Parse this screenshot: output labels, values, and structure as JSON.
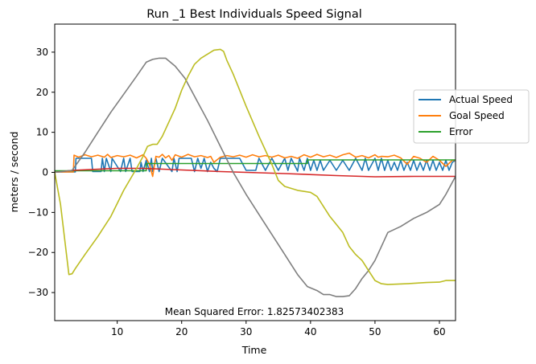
{
  "chart_data": {
    "type": "line",
    "title": "Run _1 Best Individuals Speed Signal",
    "xlabel": "Time",
    "ylabel": "meters / second",
    "xlim": [
      0.3,
      62.5
    ],
    "ylim": [
      -37,
      37
    ],
    "xticks": [
      10,
      20,
      30,
      40,
      50,
      60
    ],
    "yticks": [
      -30,
      -20,
      -10,
      0,
      10,
      20,
      30
    ],
    "grid": false,
    "legend_position": "right",
    "annotation": "Mean Squared Error: 1.82573402383",
    "series": [
      {
        "name": "Actual Speed",
        "color": "#1f77b4",
        "x": [
          0.3,
          3.5,
          3.6,
          6.0,
          6.2,
          7.5,
          7.7,
          8.0,
          8.3,
          9.0,
          9.2,
          10.5,
          11.0,
          11.3,
          12.0,
          12.3,
          13.5,
          13.7,
          14.0,
          14.5,
          15.0,
          15.3,
          15.5,
          16.0,
          16.5,
          17.0,
          18.5,
          18.8,
          19.3,
          19.6,
          21.5,
          22.0,
          22.5,
          23.0,
          23.5,
          24.0,
          24.5,
          25.0,
          25.5,
          26.0,
          29.0,
          30.0,
          31.5,
          32.0,
          33.0,
          34.0,
          35.0,
          36.0,
          36.5,
          37.0,
          38.0,
          38.3,
          39.0,
          39.5,
          40.0,
          40.5,
          41.0,
          41.5,
          42.0,
          43.0,
          44.0,
          45.0,
          46.0,
          47.0,
          48.0,
          48.5,
          49.0,
          50.0,
          50.5,
          51.0,
          51.5,
          52.0,
          52.5,
          53.0,
          53.5,
          54.0,
          54.5,
          55.0,
          55.5,
          56.0,
          56.5,
          57.0,
          57.5,
          58.0,
          58.5,
          59.0,
          59.5,
          60.0,
          60.5,
          61.0,
          61.5,
          62.0,
          62.5
        ],
        "y": [
          0.1,
          0.1,
          3.5,
          3.5,
          0.2,
          0.2,
          3.5,
          0.2,
          3.5,
          0.2,
          3.5,
          0.2,
          3.5,
          0.2,
          3.5,
          0.2,
          0.2,
          2.5,
          0.2,
          3.0,
          0.2,
          3.5,
          0.2,
          3.5,
          0.2,
          3.5,
          0.2,
          3.5,
          0.2,
          3.5,
          3.5,
          0.2,
          3.5,
          1.0,
          3.5,
          0.2,
          2.5,
          1.0,
          0.2,
          3.5,
          3.5,
          0.5,
          0.5,
          3.5,
          0.5,
          3.5,
          0.5,
          3.5,
          0.5,
          3.5,
          0.3,
          3.5,
          0.5,
          3.5,
          0.5,
          3.0,
          0.5,
          3.0,
          0.5,
          3.0,
          0.5,
          3.0,
          0.5,
          3.5,
          0.5,
          3.5,
          0.5,
          3.5,
          0.5,
          3.5,
          0.5,
          3.0,
          0.5,
          2.5,
          0.5,
          3.0,
          0.5,
          2.5,
          0.5,
          3.0,
          0.5,
          2.5,
          0.5,
          3.0,
          0.5,
          3.0,
          0.5,
          2.5,
          0.5,
          3.0,
          0.5,
          2.5,
          3.0
        ]
      },
      {
        "name": "Goal Speed",
        "color": "#ff7f0e",
        "x": [
          0.3,
          3.2,
          3.3,
          4.0,
          5.0,
          6.0,
          7.0,
          8.0,
          8.5,
          9.0,
          10.0,
          11.0,
          12.0,
          13.0,
          14.0,
          14.5,
          15.0,
          15.5,
          16.0,
          16.5,
          17.0,
          17.5,
          18.0,
          18.5,
          19.0,
          20.0,
          21.0,
          22.0,
          23.0,
          24.0,
          24.5,
          25.0,
          26.0,
          27.0,
          28.0,
          29.0,
          30.0,
          31.0,
          32.0,
          33.0,
          34.0,
          35.0,
          36.0,
          37.0,
          38.0,
          39.0,
          40.0,
          41.0,
          42.0,
          43.0,
          44.0,
          45.0,
          46.0,
          47.0,
          48.0,
          49.0,
          50.0,
          50.5,
          51.0,
          52.0,
          53.0,
          54.0,
          55.0,
          56.0,
          57.0,
          58.0,
          59.0,
          60.0,
          61.0,
          62.0,
          62.5
        ],
        "y": [
          0.1,
          0.1,
          4.3,
          3.8,
          4.4,
          3.9,
          4.3,
          3.8,
          4.5,
          3.7,
          4.2,
          3.9,
          4.3,
          3.6,
          4.4,
          3.5,
          2.0,
          -1.0,
          4.0,
          3.8,
          4.5,
          3.6,
          4.2,
          3.0,
          4.4,
          3.8,
          4.5,
          3.9,
          4.2,
          3.7,
          4.0,
          2.5,
          3.8,
          4.2,
          3.9,
          4.3,
          3.8,
          4.4,
          3.9,
          4.2,
          3.8,
          4.3,
          3.6,
          4.0,
          3.5,
          4.4,
          3.8,
          4.5,
          3.9,
          4.3,
          3.7,
          4.4,
          4.8,
          3.8,
          4.2,
          3.6,
          4.4,
          3.8,
          4.0,
          3.9,
          4.3,
          3.6,
          2.0,
          4.0,
          3.5,
          2.5,
          4.0,
          3.0,
          1.5,
          3.0,
          3.0
        ]
      },
      {
        "name": "Error",
        "color": "#2ca02c",
        "x": [
          0.3,
          14.5,
          14.5,
          30.0,
          30.0,
          39.5,
          39.5,
          62.5
        ],
        "y": [
          0.4,
          0.4,
          2.2,
          2.2,
          2.2,
          2.2,
          3.1,
          3.1
        ]
      },
      {
        "name": "",
        "color": "#d62728",
        "x": [
          0.3,
          3.0,
          10.0,
          14.0,
          20.0,
          26.0,
          30.0,
          36.0,
          44.0,
          50.0,
          56.0,
          62.5
        ],
        "y": [
          0.0,
          0.5,
          1.0,
          1.0,
          0.6,
          0.2,
          0.0,
          -0.3,
          -0.8,
          -1.1,
          -1.0,
          -1.0
        ]
      },
      {
        "name": "",
        "color": "#7f7f7f",
        "x": [
          0.3,
          3.0,
          5.0,
          7.0,
          9.0,
          11.0,
          13.0,
          14.5,
          15.5,
          16.5,
          17.5,
          19.0,
          20.5,
          22.0,
          24.0,
          26.0,
          28.0,
          30.0,
          32.0,
          34.0,
          36.0,
          38.0,
          39.5,
          41.0,
          42.0,
          43.0,
          44.0,
          45.0,
          46.0,
          47.0,
          48.0,
          49.0,
          50.0,
          51.0,
          52.0,
          54.0,
          56.0,
          58.0,
          60.0,
          61.0,
          62.5
        ],
        "y": [
          0.0,
          0.5,
          5.0,
          10.0,
          15.0,
          19.5,
          24.0,
          27.5,
          28.2,
          28.5,
          28.5,
          26.5,
          23.5,
          19.0,
          13.0,
          6.5,
          0.0,
          -5.5,
          -10.5,
          -15.5,
          -20.5,
          -25.5,
          -28.5,
          -29.5,
          -30.5,
          -30.5,
          -31.0,
          -31.0,
          -30.8,
          -29.0,
          -26.5,
          -24.5,
          -22.0,
          -18.5,
          -15.0,
          -13.5,
          -11.5,
          -10.0,
          -8.0,
          -5.5,
          -1.0
        ]
      },
      {
        "name": "",
        "color": "#bcbd22",
        "x": [
          0.3,
          1.2,
          2.5,
          3.0,
          3.5,
          5.0,
          7.0,
          9.0,
          11.0,
          13.0,
          14.0,
          14.7,
          15.5,
          16.2,
          17.0,
          18.0,
          19.0,
          20.0,
          21.0,
          22.0,
          23.0,
          24.0,
          25.0,
          26.0,
          26.5,
          27.0,
          28.0,
          30.0,
          32.0,
          34.0,
          35.0,
          36.0,
          38.0,
          40.0,
          41.0,
          42.0,
          43.0,
          44.0,
          45.0,
          46.0,
          47.0,
          48.0,
          49.0,
          50.0,
          51.0,
          52.0,
          55.0,
          58.0,
          60.0,
          61.0,
          62.5
        ],
        "y": [
          0.0,
          -8.0,
          -25.5,
          -25.3,
          -24.0,
          -20.5,
          -16.0,
          -11.0,
          -4.5,
          1.0,
          4.0,
          6.5,
          7.0,
          7.0,
          9.0,
          12.5,
          16.0,
          20.5,
          24.0,
          27.0,
          28.5,
          29.5,
          30.5,
          30.7,
          30.2,
          28.0,
          24.5,
          16.5,
          9.0,
          2.0,
          -2.0,
          -3.5,
          -4.5,
          -5.0,
          -6.0,
          -8.5,
          -11.0,
          -13.0,
          -15.0,
          -18.5,
          -20.5,
          -22.0,
          -24.5,
          -27.0,
          -27.8,
          -28.0,
          -27.8,
          -27.5,
          -27.4,
          -27.0,
          -27.0
        ]
      }
    ]
  }
}
